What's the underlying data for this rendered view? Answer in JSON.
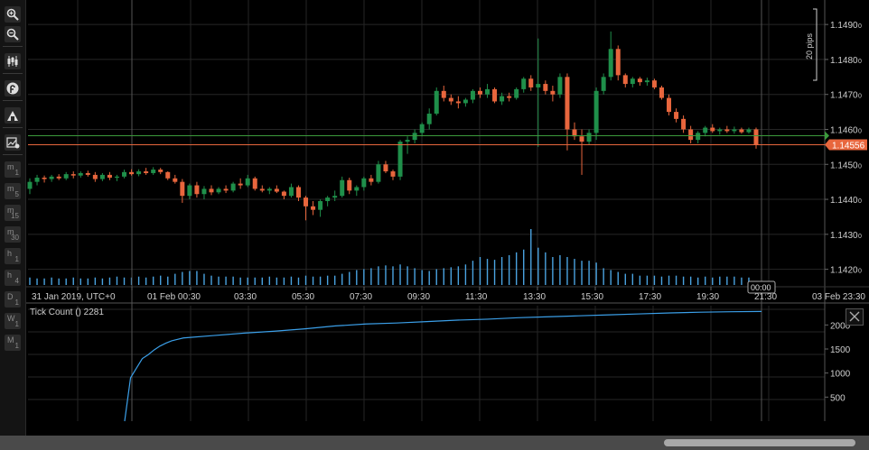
{
  "toolbar": {
    "tools": [
      "zoom-in-icon",
      "zoom-out-icon",
      "chart-type-icon",
      "objects-icon",
      "drawing-icon",
      "chart-settings-icon"
    ],
    "timeframes": [
      {
        "a": "m",
        "b": "1"
      },
      {
        "a": "m",
        "b": "5"
      },
      {
        "a": "m",
        "b": "15"
      },
      {
        "a": "m",
        "b": "30"
      },
      {
        "a": "h",
        "b": "1"
      },
      {
        "a": "h",
        "b": "4"
      },
      {
        "a": "D",
        "b": "1"
      },
      {
        "a": "W",
        "b": "1"
      },
      {
        "a": "M",
        "b": "1"
      }
    ]
  },
  "price_axis": {
    "ticks": [
      "1.1490",
      "1.1480",
      "1.1470",
      "1.1460",
      "1.1450",
      "1.1440",
      "1.1430",
      "1.1420"
    ],
    "tick_suffix": "0",
    "current_price_label": "1.14556",
    "pips_ruler_label": "20 pips"
  },
  "time_axis": {
    "labels": [
      "31 Jan 2019, UTC+0",
      "01 Feb 00:30",
      "03:30",
      "05:30",
      "07:30",
      "09:30",
      "11:30",
      "13:30",
      "15:30",
      "17:30",
      "19:30",
      "21:30",
      "03 Feb 23:30"
    ],
    "crosshair_time_label": "00:00"
  },
  "indicator": {
    "title": "Tick Count () 2281",
    "axis_ticks": [
      "2000",
      "1500",
      "1000",
      "500"
    ]
  },
  "colors": {
    "background": "#000000",
    "grid": "#262626",
    "bullish": "#1f8f4a",
    "bearish": "#e8663d",
    "volume": "#4aa3e0",
    "indicator_line": "#3b9fe8",
    "price_line": "#3c9a3c",
    "current_price_line": "#e8663d"
  },
  "chart_data": [
    {
      "type": "candlestick",
      "title": "",
      "timeframe": "m30",
      "ylim": [
        1.1415,
        1.1497
      ],
      "candles": [
        [
          1.1443,
          1.1446,
          1.14415,
          1.1445
        ],
        [
          1.1445,
          1.1447,
          1.1444,
          1.14462
        ],
        [
          1.14462,
          1.14468,
          1.14448,
          1.14458
        ],
        [
          1.14458,
          1.1447,
          1.1445,
          1.14465
        ],
        [
          1.14465,
          1.14472,
          1.14455,
          1.1446
        ],
        [
          1.1446,
          1.14478,
          1.14455,
          1.14472
        ],
        [
          1.14472,
          1.1448,
          1.1446,
          1.14468
        ],
        [
          1.14468,
          1.1448,
          1.14462,
          1.14475
        ],
        [
          1.14475,
          1.14482,
          1.14465,
          1.1447
        ],
        [
          1.1447,
          1.14478,
          1.1445,
          1.14458
        ],
        [
          1.14458,
          1.14475,
          1.14452,
          1.1447
        ],
        [
          1.1447,
          1.14478,
          1.14455,
          1.14462
        ],
        [
          1.14462,
          1.1447,
          1.14452,
          1.14465
        ],
        [
          1.14465,
          1.14485,
          1.1446,
          1.14478
        ],
        [
          1.14478,
          1.14486,
          1.14468,
          1.14472
        ],
        [
          1.14472,
          1.14486,
          1.14466,
          1.1448
        ],
        [
          1.1448,
          1.1449,
          1.1447,
          1.14475
        ],
        [
          1.14475,
          1.14492,
          1.1447,
          1.14485
        ],
        [
          1.14485,
          1.1449,
          1.14472,
          1.14478
        ],
        [
          1.14478,
          1.1448,
          1.14455,
          1.1446
        ],
        [
          1.1446,
          1.1447,
          1.14445,
          1.1445
        ],
        [
          1.1445,
          1.14458,
          1.1439,
          1.1441
        ],
        [
          1.1441,
          1.14445,
          1.144,
          1.1444
        ],
        [
          1.1444,
          1.1445,
          1.14405,
          1.14415
        ],
        [
          1.14415,
          1.14438,
          1.144,
          1.1443
        ],
        [
          1.1443,
          1.1444,
          1.14412,
          1.1442
        ],
        [
          1.1442,
          1.14435,
          1.14415,
          1.1443
        ],
        [
          1.1443,
          1.1444,
          1.14418,
          1.14425
        ],
        [
          1.14425,
          1.1445,
          1.1442,
          1.14445
        ],
        [
          1.14445,
          1.1446,
          1.1443,
          1.1444
        ],
        [
          1.1444,
          1.1447,
          1.14435,
          1.1446
        ],
        [
          1.1446,
          1.14465,
          1.14425,
          1.1443
        ],
        [
          1.1443,
          1.1444,
          1.1442,
          1.14425
        ],
        [
          1.14425,
          1.14435,
          1.14415,
          1.1443
        ],
        [
          1.1443,
          1.1444,
          1.14418,
          1.14422
        ],
        [
          1.14422,
          1.14425,
          1.144,
          1.1441
        ],
        [
          1.1441,
          1.14445,
          1.14405,
          1.14435
        ],
        [
          1.14435,
          1.1444,
          1.14395,
          1.14405
        ],
        [
          1.14405,
          1.1441,
          1.1434,
          1.1438
        ],
        [
          1.1438,
          1.14395,
          1.14355,
          1.1437
        ],
        [
          1.1437,
          1.144,
          1.1435,
          1.14395
        ],
        [
          1.14395,
          1.1441,
          1.1438,
          1.14405
        ],
        [
          1.14405,
          1.14425,
          1.14395,
          1.1441
        ],
        [
          1.1441,
          1.14465,
          1.14405,
          1.14455
        ],
        [
          1.14455,
          1.14462,
          1.14415,
          1.14425
        ],
        [
          1.14425,
          1.1444,
          1.1441,
          1.14435
        ],
        [
          1.14435,
          1.14465,
          1.14425,
          1.1446
        ],
        [
          1.1446,
          1.1447,
          1.1444,
          1.1445
        ],
        [
          1.1445,
          1.1451,
          1.14445,
          1.145
        ],
        [
          1.145,
          1.1451,
          1.14475,
          1.1448
        ],
        [
          1.1448,
          1.14485,
          1.14455,
          1.14465
        ],
        [
          1.14465,
          1.1457,
          1.14455,
          1.14565
        ],
        [
          1.14565,
          1.1458,
          1.1453,
          1.1457
        ],
        [
          1.1457,
          1.146,
          1.1456,
          1.1459
        ],
        [
          1.1459,
          1.1462,
          1.1458,
          1.14615
        ],
        [
          1.14615,
          1.1466,
          1.146,
          1.14645
        ],
        [
          1.14645,
          1.1472,
          1.1464,
          1.1471
        ],
        [
          1.1471,
          1.14725,
          1.1468,
          1.1469
        ],
        [
          1.1469,
          1.147,
          1.1467,
          1.1468
        ],
        [
          1.1468,
          1.14695,
          1.1466,
          1.14675
        ],
        [
          1.14675,
          1.1469,
          1.14665,
          1.14685
        ],
        [
          1.14685,
          1.14715,
          1.14675,
          1.1471
        ],
        [
          1.1471,
          1.1472,
          1.1469,
          1.147
        ],
        [
          1.147,
          1.1473,
          1.1469,
          1.14715
        ],
        [
          1.14715,
          1.1472,
          1.14675,
          1.1468
        ],
        [
          1.1468,
          1.14705,
          1.1467,
          1.14695
        ],
        [
          1.14695,
          1.14705,
          1.1468,
          1.1469
        ],
        [
          1.1469,
          1.1472,
          1.14685,
          1.14715
        ],
        [
          1.14715,
          1.1475,
          1.14705,
          1.14745
        ],
        [
          1.14745,
          1.14755,
          1.1471,
          1.1472
        ],
        [
          1.1472,
          1.1486,
          1.1455,
          1.1473
        ],
        [
          1.1473,
          1.1474,
          1.147,
          1.1471
        ],
        [
          1.1471,
          1.14725,
          1.1468,
          1.147
        ],
        [
          1.147,
          1.1476,
          1.1469,
          1.1475
        ],
        [
          1.1475,
          1.1476,
          1.1454,
          1.146
        ],
        [
          1.146,
          1.1462,
          1.1457,
          1.1458
        ],
        [
          1.1458,
          1.146,
          1.1447,
          1.14565
        ],
        [
          1.14565,
          1.146,
          1.14555,
          1.1459
        ],
        [
          1.1459,
          1.1472,
          1.1457,
          1.1471
        ],
        [
          1.1471,
          1.1476,
          1.147,
          1.1475
        ],
        [
          1.1475,
          1.1488,
          1.1474,
          1.1483
        ],
        [
          1.1483,
          1.1484,
          1.1474,
          1.14755
        ],
        [
          1.14755,
          1.1476,
          1.1472,
          1.1473
        ],
        [
          1.1473,
          1.1475,
          1.1472,
          1.14745
        ],
        [
          1.14745,
          1.1475,
          1.14725,
          1.14735
        ],
        [
          1.14735,
          1.14748,
          1.14725,
          1.1474
        ],
        [
          1.1474,
          1.14745,
          1.14715,
          1.1472
        ],
        [
          1.1472,
          1.14725,
          1.14685,
          1.1469
        ],
        [
          1.1469,
          1.147,
          1.1464,
          1.1465
        ],
        [
          1.1465,
          1.1466,
          1.1462,
          1.1463
        ],
        [
          1.1463,
          1.1464,
          1.1459,
          1.146
        ],
        [
          1.146,
          1.1461,
          1.1456,
          1.1457
        ],
        [
          1.1457,
          1.14595,
          1.1456,
          1.1459
        ],
        [
          1.1459,
          1.1461,
          1.1458,
          1.14605
        ],
        [
          1.14605,
          1.14615,
          1.1459,
          1.14595
        ],
        [
          1.14595,
          1.14605,
          1.14585,
          1.146
        ],
        [
          1.146,
          1.1461,
          1.1459,
          1.14595
        ],
        [
          1.14595,
          1.14608,
          1.14588,
          1.146
        ],
        [
          1.146,
          1.14605,
          1.14588,
          1.14592
        ],
        [
          1.14592,
          1.14605,
          1.14588,
          1.146
        ],
        [
          1.146,
          1.14605,
          1.14545,
          1.14556
        ]
      ],
      "volume": [
        8,
        7,
        7,
        8,
        7,
        7,
        8,
        7,
        7,
        8,
        7,
        8,
        9,
        8,
        8,
        9,
        8,
        9,
        10,
        9,
        12,
        14,
        15,
        15,
        12,
        10,
        9,
        9,
        9,
        8,
        8,
        8,
        8,
        9,
        8,
        8,
        9,
        8,
        10,
        9,
        9,
        10,
        10,
        12,
        14,
        16,
        17,
        18,
        20,
        21,
        20,
        22,
        20,
        18,
        16,
        15,
        17,
        18,
        19,
        20,
        22,
        26,
        30,
        28,
        27,
        30,
        32,
        35,
        38,
        60,
        40,
        35,
        30,
        32,
        30,
        28,
        26,
        26,
        24,
        18,
        16,
        14,
        12,
        12,
        10,
        10,
        10,
        9,
        10,
        10,
        9,
        9,
        8,
        9,
        8,
        9,
        9,
        9,
        8,
        8,
        2
      ]
    },
    {
      "type": "line",
      "title": "Tick Count () 2281",
      "ylim": [
        0,
        2400
      ],
      "x": [
        "22:00",
        "22:30",
        "23:00",
        "23:30",
        "00:00",
        "00:30",
        "01:00",
        "01:30",
        "02:00",
        "02:30",
        "03:00",
        "04:00",
        "05:00",
        "06:00",
        "07:00",
        "08:00",
        "09:00",
        "10:00",
        "11:00",
        "12:00",
        "13:00",
        "14:00",
        "15:00",
        "16:00",
        "17:00",
        "18:00",
        "19:00",
        "20:00",
        "21:00",
        "21:30"
      ],
      "values": [
        0,
        900,
        1100,
        1300,
        1380,
        1480,
        1560,
        1620,
        1670,
        1700,
        1730,
        1780,
        1830,
        1870,
        1920,
        1980,
        2020,
        2040,
        2070,
        2100,
        2120,
        2150,
        2170,
        2190,
        2210,
        2230,
        2250,
        2265,
        2275,
        2281
      ]
    }
  ]
}
